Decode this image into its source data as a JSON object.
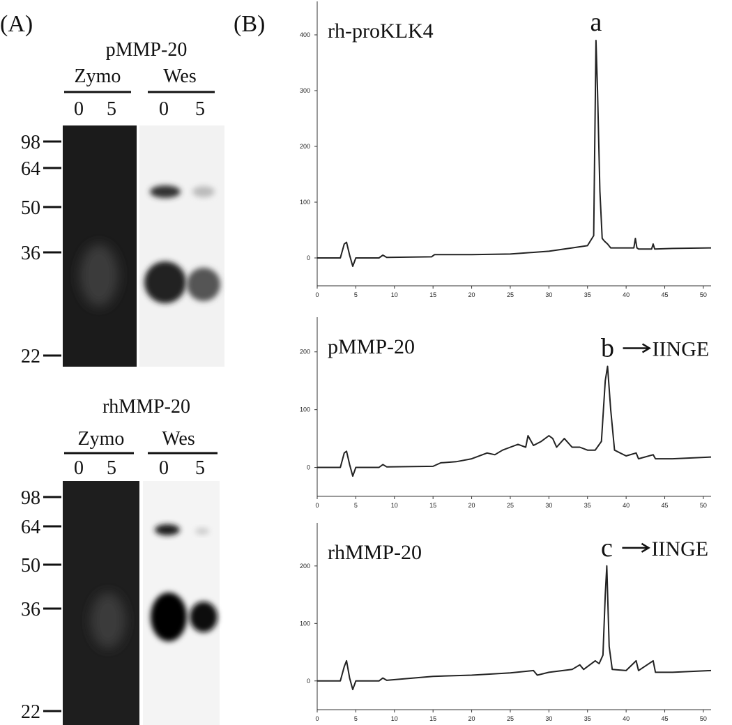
{
  "panel_labels": [
    "(A)",
    "(B)"
  ],
  "gels": [
    {
      "title": "pMMP-20",
      "groups": [
        {
          "label": "Zymo",
          "lanes": [
            "0",
            "5"
          ]
        },
        {
          "label": "Wes",
          "lanes": [
            "0",
            "5"
          ]
        }
      ],
      "markers": [
        "98",
        "64",
        "50",
        "36",
        "22"
      ]
    },
    {
      "title": "rhMMP-20",
      "groups": [
        {
          "label": "Zymo",
          "lanes": [
            "0",
            "5"
          ]
        },
        {
          "label": "Wes",
          "lanes": [
            "0",
            "5"
          ]
        }
      ],
      "markers": [
        "98",
        "64",
        "50",
        "36",
        "22"
      ]
    }
  ],
  "chart_data": [
    {
      "type": "line",
      "title": "rh-proKLK4",
      "annotation": {
        "label": "a"
      },
      "x": [
        0,
        3,
        3.5,
        3.8,
        4.2,
        4.6,
        5,
        8,
        8.5,
        9,
        14.8,
        15.2,
        20,
        25,
        30,
        33,
        35,
        35.8,
        36.1,
        36.3,
        36.6,
        36.9,
        37.2,
        37.6,
        38,
        41,
        41.2,
        41.4,
        41.6,
        43.3,
        43.5,
        43.7,
        46,
        51
      ],
      "series": [
        {
          "color": "#222222",
          "values": [
            0,
            0,
            25,
            28,
            5,
            -15,
            0,
            0,
            5,
            1,
            2,
            6,
            6,
            7,
            12,
            18,
            22,
            40,
            390,
            300,
            120,
            35,
            30,
            25,
            18,
            18,
            35,
            18,
            16,
            16,
            25,
            16,
            17,
            18
          ]
        }
      ],
      "xlim": [
        0,
        51
      ],
      "xticks": [
        0,
        5,
        10,
        15,
        20,
        25,
        30,
        35,
        40,
        45,
        50
      ],
      "ylim": [
        -50,
        460
      ],
      "yticks": [
        0,
        100,
        200,
        300,
        400
      ]
    },
    {
      "type": "line",
      "title": "pMMP-20",
      "annotation": {
        "label": "b",
        "arrow_text": "IINGE"
      },
      "x": [
        0,
        3,
        3.5,
        3.8,
        4.2,
        4.6,
        5,
        8,
        8.5,
        9,
        15,
        16,
        18,
        20,
        22,
        23,
        24,
        25,
        26,
        27,
        27.3,
        28,
        29,
        30,
        30.5,
        31,
        32,
        33,
        34,
        35,
        36,
        36.8,
        37.3,
        37.6,
        38,
        38.5,
        40,
        41.3,
        41.6,
        43.5,
        43.8,
        46,
        51
      ],
      "series": [
        {
          "color": "#222222",
          "values": [
            0,
            0,
            25,
            28,
            5,
            -15,
            0,
            0,
            5,
            1,
            2,
            8,
            10,
            15,
            25,
            22,
            30,
            35,
            40,
            35,
            55,
            38,
            45,
            55,
            50,
            35,
            50,
            35,
            35,
            30,
            30,
            45,
            150,
            175,
            100,
            30,
            20,
            25,
            15,
            22,
            15,
            15,
            18
          ]
        }
      ],
      "xlim": [
        0,
        51
      ],
      "xticks": [
        0,
        5,
        10,
        15,
        20,
        25,
        30,
        35,
        40,
        45,
        50
      ],
      "ylim": [
        -50,
        260
      ],
      "yticks": [
        0,
        100,
        200
      ]
    },
    {
      "type": "line",
      "title": "rhMMP-20",
      "annotation": {
        "label": "c",
        "arrow_text": "IINGE"
      },
      "x": [
        0,
        3,
        3.5,
        3.8,
        4.2,
        4.6,
        5,
        8,
        8.5,
        9,
        15,
        20,
        25,
        28,
        28.5,
        30,
        33,
        34,
        34.5,
        35,
        36,
        36.5,
        37,
        37.3,
        37.5,
        37.8,
        38.2,
        40,
        41.3,
        41.6,
        43.5,
        43.8,
        46,
        51
      ],
      "series": [
        {
          "color": "#222222",
          "values": [
            0,
            0,
            25,
            35,
            5,
            -15,
            0,
            0,
            5,
            1,
            8,
            10,
            14,
            18,
            10,
            15,
            20,
            28,
            20,
            25,
            35,
            30,
            45,
            150,
            200,
            60,
            20,
            18,
            35,
            18,
            35,
            15,
            15,
            18
          ]
        }
      ],
      "xlim": [
        0,
        51
      ],
      "xticks": [
        0,
        5,
        10,
        15,
        20,
        25,
        30,
        35,
        40,
        45,
        50
      ],
      "ylim": [
        -50,
        275
      ],
      "yticks": [
        0,
        100,
        200
      ]
    }
  ]
}
